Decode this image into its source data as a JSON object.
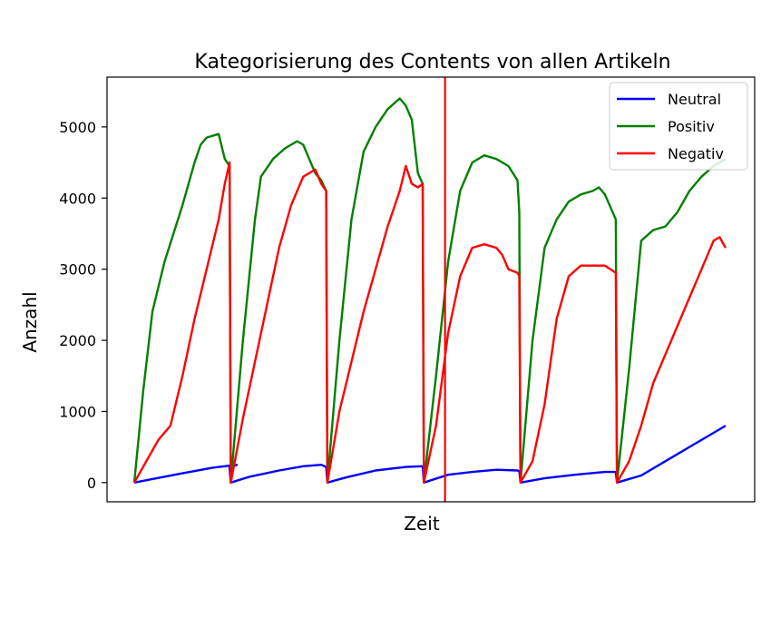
{
  "chart_data": {
    "type": "line",
    "title": "Kategorisierung des Contents von allen Artikeln",
    "xlabel": "Zeit",
    "ylabel": "Anzahl",
    "xlim": [
      0,
      100
    ],
    "ylim": [
      -270,
      5700
    ],
    "yticks": [
      0,
      1000,
      2000,
      3000,
      4000,
      5000
    ],
    "show_xticks": false,
    "grid": false,
    "legend_position": "top-right",
    "vline": {
      "x": 51.5,
      "color": "#ff0000"
    },
    "series": [
      {
        "name": "Neutral",
        "color": "#0000ff",
        "x": [
          0,
          3,
          8,
          13,
          17,
          15.8,
          16,
          19,
          24,
          28,
          31,
          31.8,
          32,
          35,
          40,
          45,
          47.8,
          48,
          52,
          56,
          60,
          63.5,
          63.8,
          64,
          68,
          73,
          78,
          79.8,
          80,
          84,
          88,
          92,
          96,
          98
        ],
        "y": [
          0,
          50,
          130,
          210,
          250,
          210,
          0,
          80,
          170,
          230,
          250,
          220,
          0,
          70,
          170,
          220,
          230,
          0,
          110,
          150,
          180,
          170,
          160,
          0,
          60,
          110,
          150,
          150,
          0,
          100,
          300,
          500,
          700,
          800
        ]
      },
      {
        "name": "Positiv",
        "color": "#008000",
        "x": [
          0,
          1.5,
          3,
          5,
          8,
          10,
          11,
          12,
          14,
          15,
          15.8,
          16,
          18,
          20,
          21,
          23,
          25,
          27,
          28,
          29,
          30,
          31,
          31.8,
          32,
          34,
          36,
          38,
          40,
          42,
          44,
          45,
          46,
          47,
          47.8,
          48,
          50,
          52,
          54,
          56,
          58,
          60,
          62,
          63.5,
          63.8,
          64,
          66,
          68,
          70,
          72,
          74,
          76,
          77,
          78,
          79.8,
          80,
          82,
          84,
          86,
          88,
          90,
          92,
          94,
          96,
          98
        ],
        "y": [
          0,
          1300,
          2400,
          3100,
          3900,
          4500,
          4750,
          4850,
          4900,
          4550,
          4450,
          0,
          2000,
          3700,
          4300,
          4550,
          4700,
          4800,
          4750,
          4550,
          4350,
          4250,
          4100,
          0,
          2000,
          3700,
          4650,
          5000,
          5250,
          5400,
          5300,
          5100,
          4350,
          4200,
          0,
          1500,
          3100,
          4100,
          4500,
          4600,
          4550,
          4450,
          4250,
          3800,
          0,
          2000,
          3300,
          3700,
          3950,
          4050,
          4100,
          4150,
          4050,
          3700,
          0,
          1600,
          3400,
          3550,
          3600,
          3800,
          4100,
          4300,
          4450,
          4550
        ]
      },
      {
        "name": "Negativ",
        "color": "#ff0000",
        "x": [
          0,
          2,
          4,
          6,
          8,
          10,
          12,
          14,
          15,
          15.8,
          16,
          18,
          20,
          22,
          24,
          26,
          28,
          30,
          31,
          31.8,
          32,
          34,
          36,
          38,
          40,
          42,
          44,
          45,
          46,
          47,
          47.8,
          48,
          50,
          52,
          54,
          56,
          58,
          60,
          61,
          62,
          63.5,
          63.8,
          64,
          66,
          68,
          70,
          72,
          74,
          76,
          78,
          79.8,
          80,
          82,
          84,
          86,
          88,
          90,
          92,
          94,
          96,
          97,
          98
        ],
        "y": [
          0,
          300,
          600,
          800,
          1500,
          2300,
          3000,
          3700,
          4200,
          4500,
          0,
          900,
          1700,
          2500,
          3300,
          3900,
          4300,
          4400,
          4200,
          4100,
          0,
          1000,
          1700,
          2400,
          3000,
          3600,
          4100,
          4450,
          4200,
          4150,
          4200,
          0,
          800,
          2100,
          2900,
          3300,
          3350,
          3300,
          3200,
          3000,
          2950,
          2900,
          0,
          300,
          1100,
          2300,
          2900,
          3050,
          3050,
          3050,
          2950,
          0,
          300,
          800,
          1400,
          1800,
          2200,
          2600,
          3000,
          3400,
          3450,
          3300
        ]
      }
    ]
  }
}
